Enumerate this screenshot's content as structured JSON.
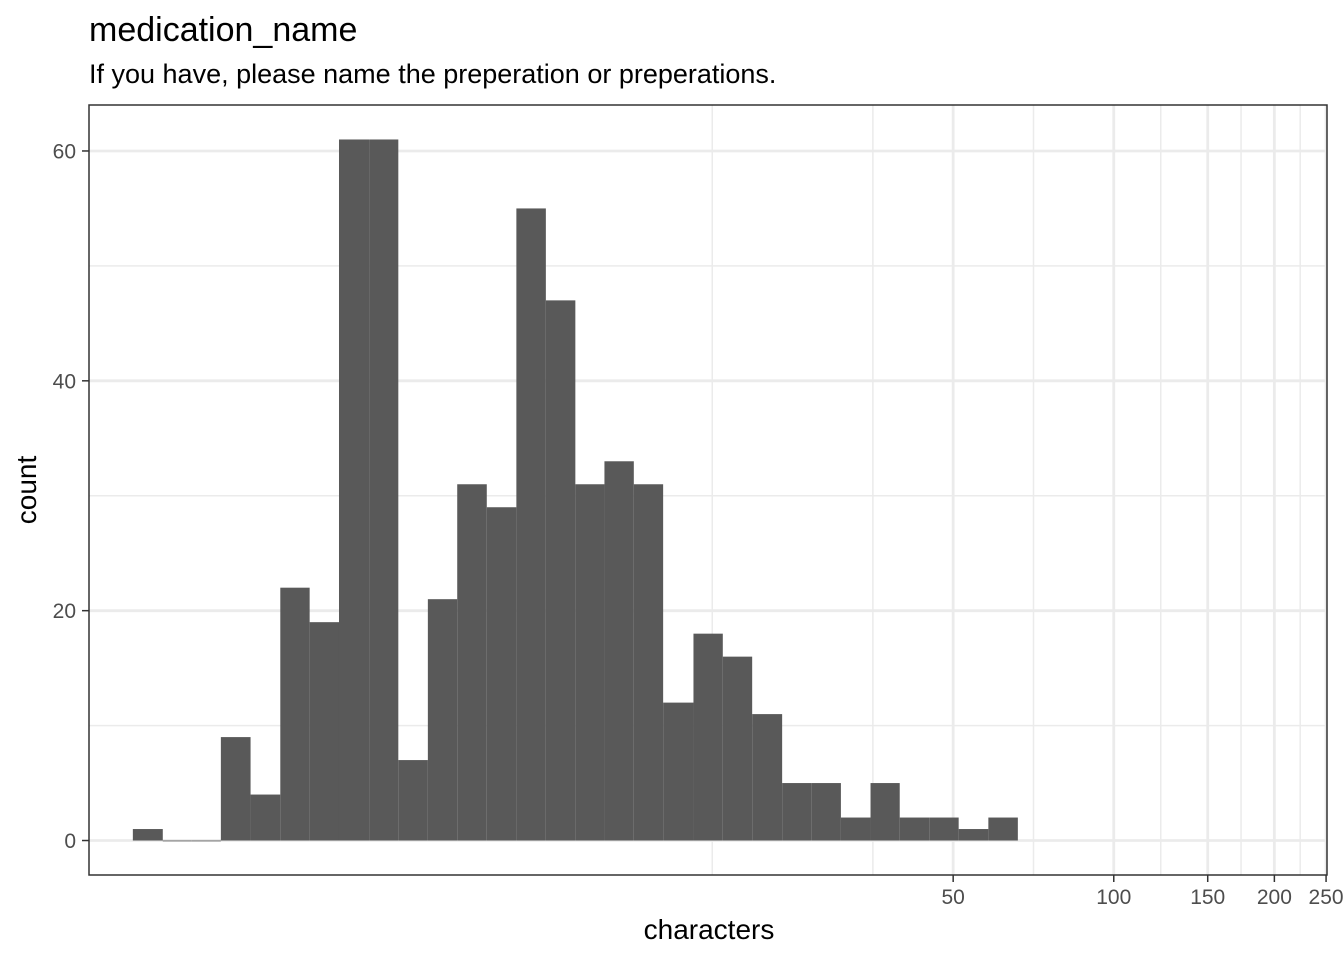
{
  "chart_data": {
    "type": "bar",
    "title": "medication_name",
    "subtitle": "If you have, please name the preperation or preperations.",
    "xlabel": "characters",
    "ylabel": "count",
    "x_scale": "log10",
    "xlim": [
      1.2,
      251
    ],
    "ylim": [
      -3,
      64
    ],
    "x_ticks": [
      50,
      100,
      150,
      200,
      250
    ],
    "x_tick_labels": [
      "50",
      "100",
      "150",
      "200",
      "250"
    ],
    "y_ticks": [
      0,
      20,
      40,
      60
    ],
    "y_tick_labels": [
      "0",
      "20",
      "40",
      "60"
    ],
    "grid": true,
    "bins": [
      {
        "x_start": 1.45,
        "x_end": 1.65,
        "count": 1
      },
      {
        "x_start": 1.65,
        "x_end": 1.87,
        "count": 0
      },
      {
        "x_start": 1.87,
        "x_end": 2.12,
        "count": 0
      },
      {
        "x_start": 2.12,
        "x_end": 2.41,
        "count": 9
      },
      {
        "x_start": 2.41,
        "x_end": 2.74,
        "count": 4
      },
      {
        "x_start": 2.74,
        "x_end": 3.11,
        "count": 22
      },
      {
        "x_start": 3.11,
        "x_end": 3.53,
        "count": 19
      },
      {
        "x_start": 3.53,
        "x_end": 4.02,
        "count": 61
      },
      {
        "x_start": 4.02,
        "x_end": 4.56,
        "count": 61
      },
      {
        "x_start": 4.56,
        "x_end": 5.18,
        "count": 7
      },
      {
        "x_start": 5.18,
        "x_end": 5.88,
        "count": 21
      },
      {
        "x_start": 5.88,
        "x_end": 6.68,
        "count": 31
      },
      {
        "x_start": 6.68,
        "x_end": 7.59,
        "count": 29
      },
      {
        "x_start": 7.59,
        "x_end": 8.62,
        "count": 55
      },
      {
        "x_start": 8.62,
        "x_end": 9.79,
        "count": 47
      },
      {
        "x_start": 9.79,
        "x_end": 11.1,
        "count": 31
      },
      {
        "x_start": 11.1,
        "x_end": 12.6,
        "count": 33
      },
      {
        "x_start": 12.6,
        "x_end": 14.3,
        "count": 31
      },
      {
        "x_start": 14.3,
        "x_end": 16.3,
        "count": 12
      },
      {
        "x_start": 16.3,
        "x_end": 18.5,
        "count": 18
      },
      {
        "x_start": 18.5,
        "x_end": 21.0,
        "count": 16
      },
      {
        "x_start": 21.0,
        "x_end": 23.9,
        "count": 11
      },
      {
        "x_start": 23.9,
        "x_end": 27.1,
        "count": 5
      },
      {
        "x_start": 27.1,
        "x_end": 30.8,
        "count": 5
      },
      {
        "x_start": 30.8,
        "x_end": 35.0,
        "count": 2
      },
      {
        "x_start": 35.0,
        "x_end": 39.7,
        "count": 5
      },
      {
        "x_start": 39.7,
        "x_end": 45.1,
        "count": 2
      },
      {
        "x_start": 45.1,
        "x_end": 51.2,
        "count": 2
      },
      {
        "x_start": 51.2,
        "x_end": 58.2,
        "count": 1
      },
      {
        "x_start": 58.2,
        "x_end": 66.1,
        "count": 2
      }
    ],
    "bar_color": "#595959",
    "grid_color": "#ebebeb",
    "panel_border_color": "#333333",
    "tick_label_color": "#4d4d4d"
  }
}
